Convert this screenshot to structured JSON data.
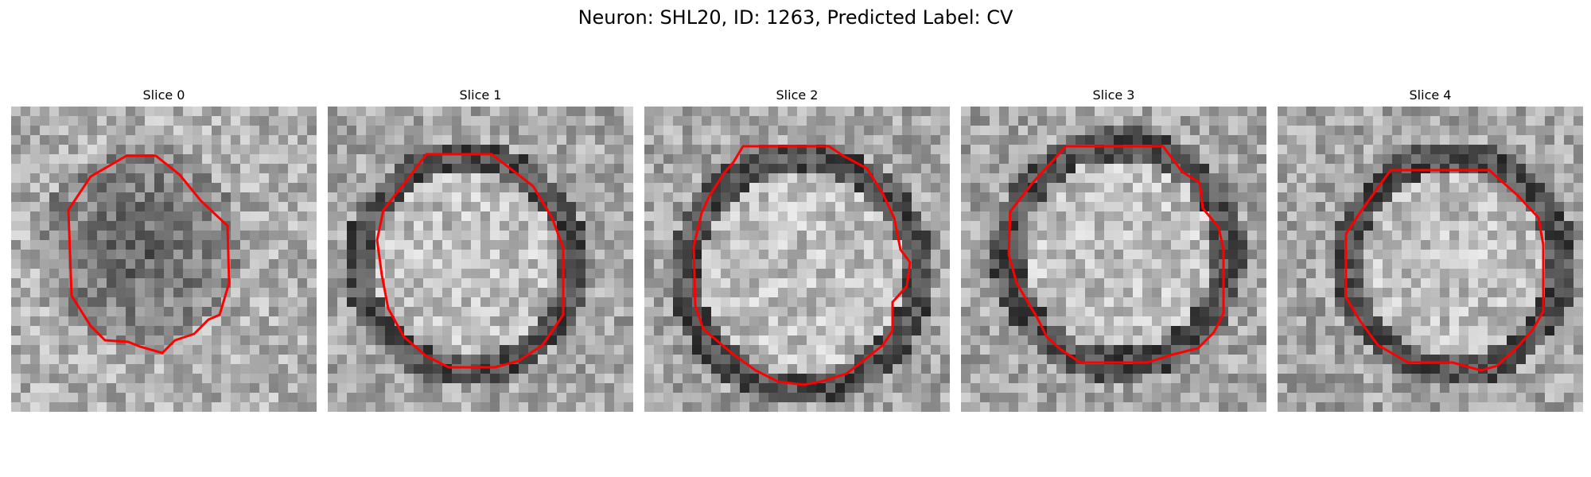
{
  "figure": {
    "title": "Neuron: SHL20, ID: 1263, Predicted Label: CV",
    "contour_color": "#ff0000"
  },
  "slices": [
    {
      "label": "Slice 0"
    },
    {
      "label": "Slice 1"
    },
    {
      "label": "Slice 2"
    },
    {
      "label": "Slice 3"
    },
    {
      "label": "Slice 4"
    }
  ]
}
